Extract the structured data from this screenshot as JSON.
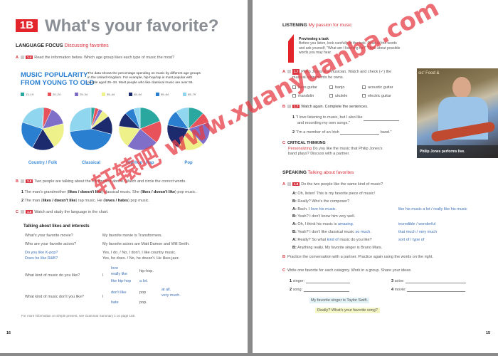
{
  "left": {
    "unit": "1B",
    "title": "What's your favorite?",
    "section": "LANGUAGE FOCUS",
    "section_sub": "Discussing favorites",
    "a": {
      "letter": "A",
      "track": "1.4",
      "text": "Read the information below. Which age group likes each type of music the most?"
    },
    "infographic": {
      "title1": "MUSIC POPULARITY",
      "title2": "FROM YOUNG TO OLD",
      "desc": [
        "The data shows the percentage spending on music by different age groups",
        "in the United Kingdom. For example, hip-hop/rap is most popular with",
        "people aged 25–34. Most people who like classical music are over 55."
      ]
    },
    "b": {
      "letter": "B",
      "track": "1.5",
      "text": "Two people are talking about the information above. Watch and circle the correct words.",
      "items": [
        {
          "num": "1",
          "t1": "The man's grandmother (",
          "o1": "likes / doesn't like",
          "t2": ") classical music. She (",
          "o2": "likes / doesn't like",
          "t3": ") pop music."
        },
        {
          "num": "2",
          "t1": "The man (",
          "o1": "likes / doesn't like",
          "t2": ") rap music. He (",
          "o2": "loves / hates",
          "t3": ") pop music."
        }
      ]
    },
    "c": {
      "letter": "C",
      "track": "1.6",
      "text": "Watch and study the language in the chart."
    },
    "grammar": {
      "title": "Talking about likes and interests",
      "q1": "What's your favorite movie?",
      "a1": "My favorite movie is Transformers.",
      "q2": "Who are your favorite actors?",
      "a2": "My favorite actors are Matt Damon and Will Smith.",
      "q3": "Do you like K-pop?",
      "a3": "Yes, I do. / No, I don't. I like country music.",
      "q4": "Does he like R&B?",
      "a4": "Yes, he does. / No, he doesn't. He likes jazz.",
      "q5": "What kind of music do you like?",
      "i": "I",
      "love": "love",
      "really_like": "really like",
      "like_hiphop": "like hip-hop",
      "hiphop": "hip-hop.",
      "alot": "a lot.",
      "q6": "What kind of music don't you like?",
      "dont_like": "don't like",
      "hate": "hate",
      "pop1": "pop",
      "pop2": "pop.",
      "at_all": "at all.",
      "very_much": "very much."
    },
    "footer": "For more information on simple present, see Grammar Summary 1 on page 155.",
    "page_number": "16"
  },
  "chart_data": {
    "type": "pie",
    "legend": [
      "13–19",
      "20–24",
      "25–34",
      "35–44",
      "45–54",
      "55–64",
      "65–79"
    ],
    "colors": [
      "#2aa8a0",
      "#e8525a",
      "#7f6fc8",
      "#eef08a",
      "#1c2a6e",
      "#2a7fd0",
      "#8fd6ee"
    ],
    "charts": [
      {
        "label": "Country / Folk",
        "values": [
          1,
          6,
          14,
          20,
          17,
          22,
          20
        ]
      },
      {
        "label": "Classical",
        "values": [
          3,
          3,
          3,
          6,
          14,
          44,
          27
        ]
      },
      {
        "label": "Hip-hop / Rap",
        "values": [
          19,
          17,
          24,
          17,
          11,
          7,
          5
        ]
      },
      {
        "label": "Pop",
        "values": [
          12,
          8,
          18,
          20,
          20,
          12,
          10
        ]
      }
    ]
  },
  "right": {
    "section": "LISTENING",
    "section_sub": "My passion for music",
    "tip": {
      "title": "Previewing a task",
      "lines": [
        "Before you listen, look carefully at the task. Read all the words",
        "and ask yourself, \"What am I listening for?\" Think about possible",
        "words you may hear."
      ]
    },
    "a": {
      "letter": "A",
      "track": "1.7",
      "text1": "Philip Jones is a musician. Watch and check (✓) the",
      "text2": "musical instruments he owns.",
      "options": [
        "bass guitar",
        "banjo",
        "acoustic guitar",
        "mandolin",
        "ukulele",
        "electric guitar"
      ]
    },
    "b": {
      "letter": "B",
      "track": "1.7",
      "text": "Watch again. Complete the sentences.",
      "s1a": "\"I love listening to music, but I also like",
      "s1b": "and recording my own songs.\"",
      "s2a": "\"I'm a member of an Irish",
      "s2b": "band.\""
    },
    "c": {
      "letter": "C",
      "title": "CRITICAL THINKING",
      "l1a": "Personalizing",
      "l1b": "Do you like the music that Philip Jones's",
      "l2": "band plays? Discuss with a partner."
    },
    "photo_caption": "Philip Jones performs live.",
    "photo_sign": "sic' Food &",
    "speaking": "SPEAKING",
    "speaking_sub": "Talking about favorites",
    "sa": {
      "letter": "A",
      "track": "1.8",
      "text": "Do the two people like the same kind of music?"
    },
    "dialog": [
      {
        "sp": "A:",
        "pre": "Oh, listen! This is my favorite piece of music!",
        "hl": "",
        "post": "",
        "alt": ""
      },
      {
        "sp": "B:",
        "pre": "Really? Who's the composer?",
        "hl": "",
        "post": "",
        "alt": ""
      },
      {
        "sp": "A:",
        "pre": "Bach. I ",
        "hl": "love his music.",
        "post": "",
        "alt": "like his music a lot / really like his music"
      },
      {
        "sp": "B:",
        "pre": "Yeah? I don't know him very well.",
        "hl": "",
        "post": "",
        "alt": ""
      },
      {
        "sp": "A:",
        "pre": "Oh, I think his music is ",
        "hl": "amazing.",
        "post": "",
        "alt": "incredible / wonderful"
      },
      {
        "sp": "B:",
        "pre": "Yeah? I don't like classical music ",
        "hl": "so much.",
        "post": "",
        "alt": "that much / very much"
      },
      {
        "sp": "A:",
        "pre": "Really? So what ",
        "hl": "kind of",
        "post": " music do you like?",
        "alt": "sort of / type of"
      },
      {
        "sp": "B:",
        "pre": "Anything really. My favorite singer is Bruno Mars.",
        "hl": "",
        "post": "",
        "alt": ""
      }
    ],
    "sb": {
      "letter": "B",
      "text": "Practice the conversation with a partner. Practice again using the words on the right."
    },
    "sc": {
      "letter": "C",
      "text": "Write one favorite for each category. Work in a group. Share your ideas.",
      "items": [
        {
          "num": "1",
          "label": "singer:"
        },
        {
          "num": "2",
          "label": "song:"
        },
        {
          "num": "3",
          "label": "actor:"
        },
        {
          "num": "4",
          "label": "movie:"
        }
      ]
    },
    "bubble1": "My favorite singer is Taylor Swift.",
    "bubble2": "Really? What's your favorite song?",
    "page_number": "15"
  },
  "watermark": "轩辕吧 www.xuanyuanba.com"
}
